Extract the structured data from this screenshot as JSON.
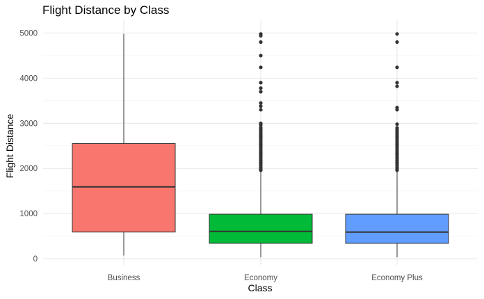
{
  "chart_data": {
    "type": "box",
    "title": "Flight Distance by Class",
    "xlabel": "Class",
    "ylabel": "Flight Distance",
    "ylim": [
      -100,
      5100
    ],
    "yticks": [
      0,
      1000,
      2000,
      3000,
      4000,
      5000
    ],
    "grid": true,
    "legend": "none",
    "categories": [
      "Business",
      "Economy",
      "Economy Plus"
    ],
    "boxes": [
      {
        "category": "Business",
        "color": "#F8766D",
        "whisker_low": 70,
        "q1": 590,
        "median": 1590,
        "q3": 2550,
        "whisker_high": 4980,
        "outliers": []
      },
      {
        "category": "Economy",
        "color": "#00BA38",
        "whisker_low": 30,
        "q1": 340,
        "median": 605,
        "q3": 985,
        "whisker_high": 1940,
        "outliers": [
          4980,
          4940,
          4800,
          4500,
          4240,
          3900,
          3780,
          3700,
          3450,
          3380,
          3300,
          3000,
          2960,
          2900,
          2860,
          2820,
          2780,
          2740,
          2700,
          2660,
          2620,
          2580,
          2540,
          2500,
          2460,
          2420,
          2380,
          2340,
          2300,
          2260,
          2220,
          2180,
          2140,
          2100,
          2060,
          2020,
          1980,
          1960
        ]
      },
      {
        "category": "Economy Plus",
        "color": "#619CFF",
        "whisker_low": 30,
        "q1": 340,
        "median": 590,
        "q3": 985,
        "whisker_high": 1940,
        "outliers": [
          4980,
          4800,
          4240,
          3900,
          3820,
          3350,
          3300,
          2980,
          2900,
          2860,
          2820,
          2780,
          2740,
          2700,
          2660,
          2620,
          2580,
          2540,
          2500,
          2460,
          2420,
          2380,
          2340,
          2300,
          2260,
          2220,
          2180,
          2140,
          2100,
          2060,
          2020,
          1980,
          1960
        ]
      }
    ]
  }
}
